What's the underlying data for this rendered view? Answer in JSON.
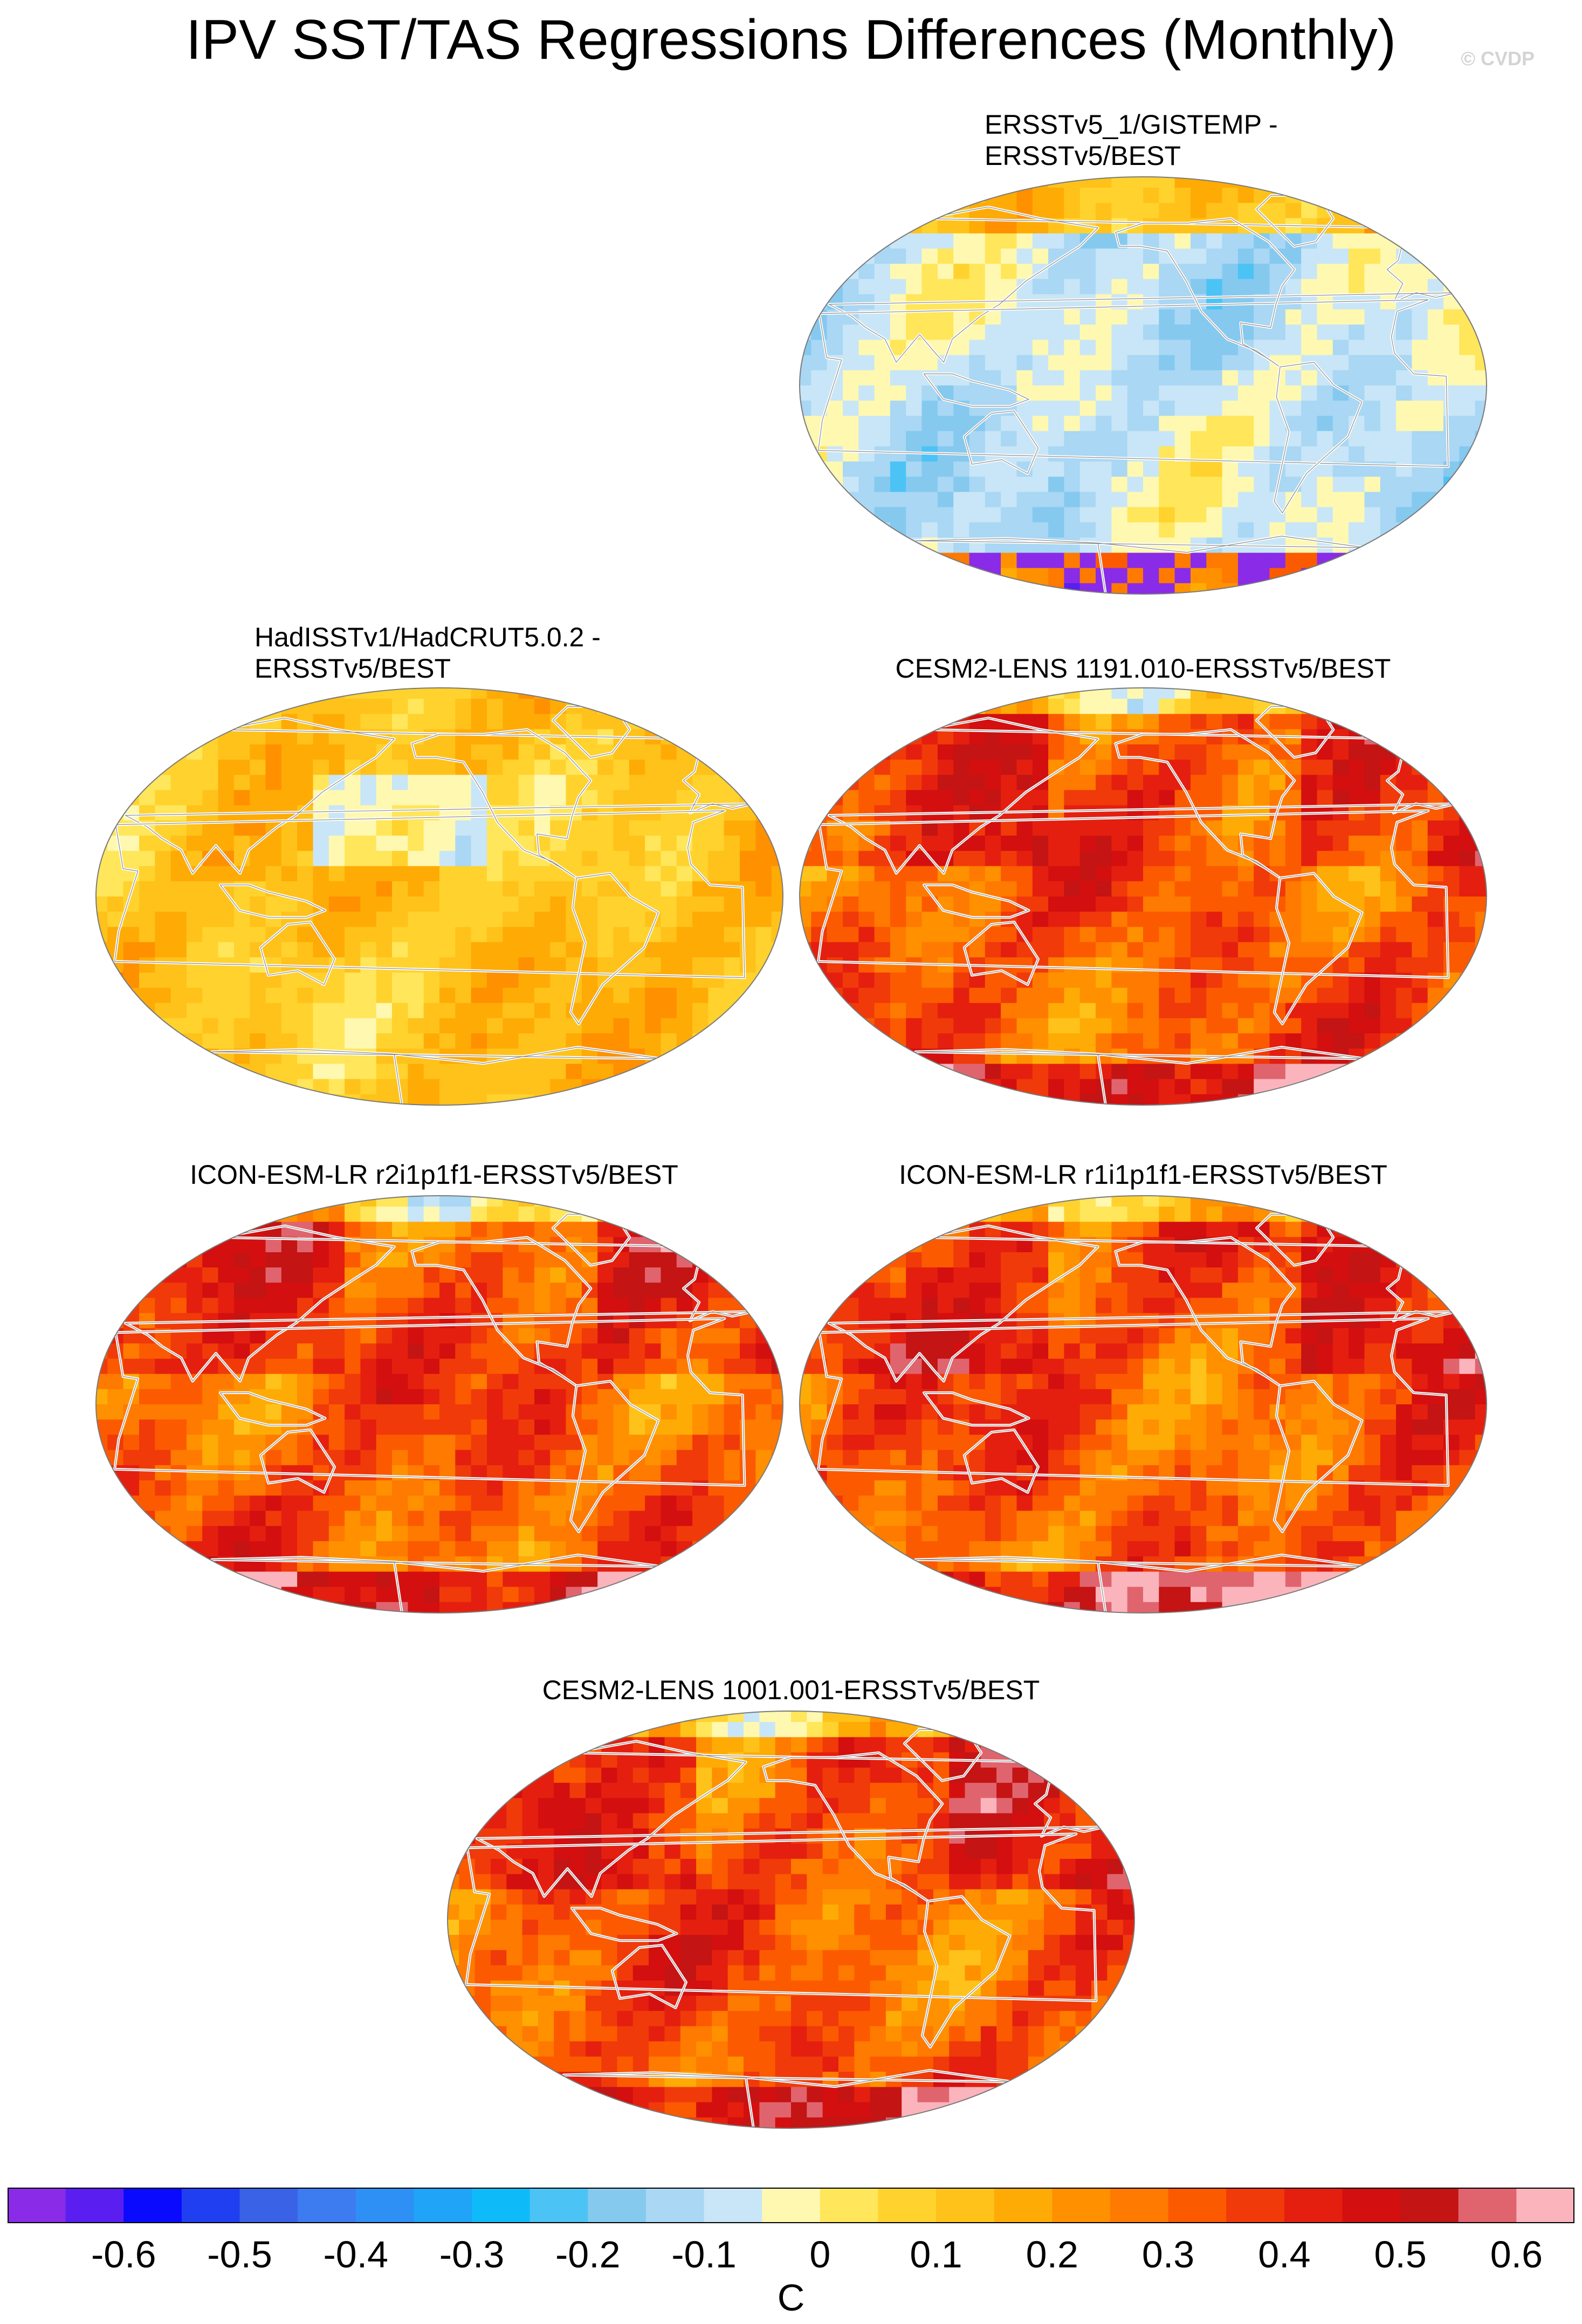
{
  "title": "IPV SST/TAS Regressions Differences (Monthly)",
  "credit": "© CVDP",
  "chart_data": {
    "type": "heatmap",
    "projection": "Robinson-like (global, centered on Pacific)",
    "panels": [
      {
        "title": "ERSSTv5_1/GISTEMP -\nERSSTv5/BEST",
        "pattern": "mostly-negative",
        "mean_c": -0.08
      },
      {
        "title": "HadISSTv1/HadCRUT5.0.2 -\nERSSTv5/BEST",
        "pattern": "weak-positive",
        "mean_c": 0.12
      },
      {
        "title": "CESM2-LENS 1191.010-ERSSTv5/BEST",
        "pattern": "strong-positive",
        "mean_c": 0.32
      },
      {
        "title": "ICON-ESM-LR r2i1p1f1-ERSSTv5/BEST",
        "pattern": "strong-positive",
        "mean_c": 0.3
      },
      {
        "title": "ICON-ESM-LR r1i1p1f1-ERSSTv5/BEST",
        "pattern": "strong-positive",
        "mean_c": 0.3
      },
      {
        "title": "CESM2-LENS 1001.001-ERSSTv5/BEST",
        "pattern": "strong-positive",
        "mean_c": 0.34
      }
    ],
    "colorbar": {
      "unit": "C",
      "tick_labels": [
        "-0.6",
        "-0.5",
        "-0.4",
        "-0.3",
        "-0.2",
        "-0.1",
        "0",
        "0.1",
        "0.2",
        "0.3",
        "0.4",
        "0.5",
        "0.6"
      ],
      "levels": [
        -0.65,
        -0.6,
        -0.55,
        -0.5,
        -0.45,
        -0.4,
        -0.35,
        -0.3,
        -0.25,
        -0.2,
        -0.15,
        -0.1,
        -0.05,
        0,
        0.05,
        0.1,
        0.15,
        0.2,
        0.25,
        0.3,
        0.35,
        0.4,
        0.45,
        0.5,
        0.55,
        0.6,
        0.65
      ],
      "colors": [
        "#8a2be8",
        "#5a1ef0",
        "#0a0aff",
        "#1f3ff0",
        "#3a62e6",
        "#3d7bf0",
        "#2e8ff5",
        "#20a4f8",
        "#0fbaf9",
        "#4cc3f5",
        "#85c9ef",
        "#a9d7f4",
        "#c8e6f7",
        "#fff8b0",
        "#ffe65a",
        "#ffd22e",
        "#ffc21a",
        "#ffab05",
        "#ff9000",
        "#ff7a00",
        "#fc5a00",
        "#f03a0a",
        "#e51f0f",
        "#d40f0f",
        "#c41414",
        "#e0646e",
        "#fbb4bc"
      ],
      "range": [
        -0.675,
        0.675
      ]
    }
  }
}
